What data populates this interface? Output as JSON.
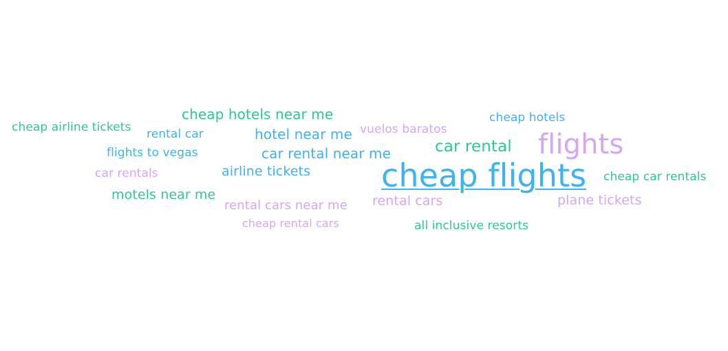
{
  "colors": {
    "blue": "#3fb2f0",
    "green": "#2ec892",
    "purple": "#d4a6f5",
    "background": "#ffffff"
  },
  "words": [
    {
      "id": "cheap-flights",
      "text": "cheap flights",
      "color": "#3fb2f0"
    },
    {
      "id": "flights",
      "text": "flights",
      "color": "#d4a6f5"
    },
    {
      "id": "car-rental",
      "text": "car rental",
      "color": "#2ec892"
    },
    {
      "id": "cheap-hotels-near-me",
      "text": "cheap hotels near me",
      "color": "#2ec892"
    },
    {
      "id": "hotel-near-me",
      "text": "hotel near me",
      "color": "#3fb2f0"
    },
    {
      "id": "car-rental-near-me",
      "text": "car rental near me",
      "color": "#3fb2f0"
    },
    {
      "id": "airline-tickets",
      "text": "airline tickets",
      "color": "#3fb2f0"
    },
    {
      "id": "motels-near-me",
      "text": "motels near me",
      "color": "#2ec892"
    },
    {
      "id": "rental-cars-near-me",
      "text": "rental cars near me",
      "color": "#d4a6f5"
    },
    {
      "id": "rental-cars",
      "text": "rental cars",
      "color": "#d4a6f5"
    },
    {
      "id": "plane-tickets",
      "text": "plane tickets",
      "color": "#d4a6f5"
    },
    {
      "id": "cheap-car-rentals",
      "text": "cheap car rentals",
      "color": "#2ec892"
    },
    {
      "id": "cheap-hotels",
      "text": "cheap hotels",
      "color": "#3fb2f0"
    },
    {
      "id": "vuelos-baratos",
      "text": "vuelos baratos",
      "color": "#d4a6f5"
    },
    {
      "id": "cheap-airline-tickets",
      "text": "cheap airline tickets",
      "color": "#2ec892"
    },
    {
      "id": "rental-car",
      "text": "rental car",
      "color": "#3fb2f0"
    },
    {
      "id": "flights-to-vegas",
      "text": "flights to vegas",
      "color": "#3fb2f0"
    },
    {
      "id": "car-rentals",
      "text": "car rentals",
      "color": "#d4a6f5"
    },
    {
      "id": "cheap-rental-cars",
      "text": "cheap rental cars",
      "color": "#d4a6f5"
    },
    {
      "id": "all-inclusive-resorts",
      "text": "all inclusive resorts",
      "color": "#2ec892"
    }
  ]
}
